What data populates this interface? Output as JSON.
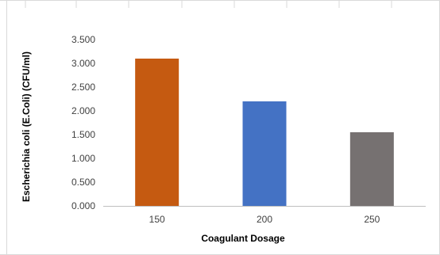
{
  "chart_data": {
    "type": "bar",
    "title": "",
    "xlabel": "Coagulant Dosage",
    "ylabel": "Escherichia coli  (E.Coli) (CFU/ml)",
    "categories": [
      "150",
      "200",
      "250"
    ],
    "series": [
      {
        "values": [
          3.1,
          2.2,
          1.55
        ]
      }
    ],
    "bar_colors": [
      "#C55A11",
      "#4472C4",
      "#767171"
    ],
    "ylim": [
      0,
      3.5
    ],
    "yticks": [
      "0.000",
      "0.500",
      "1.000",
      "1.500",
      "2.000",
      "2.500",
      "3.000",
      "3.500"
    ],
    "grid": false,
    "legend": "none"
  }
}
